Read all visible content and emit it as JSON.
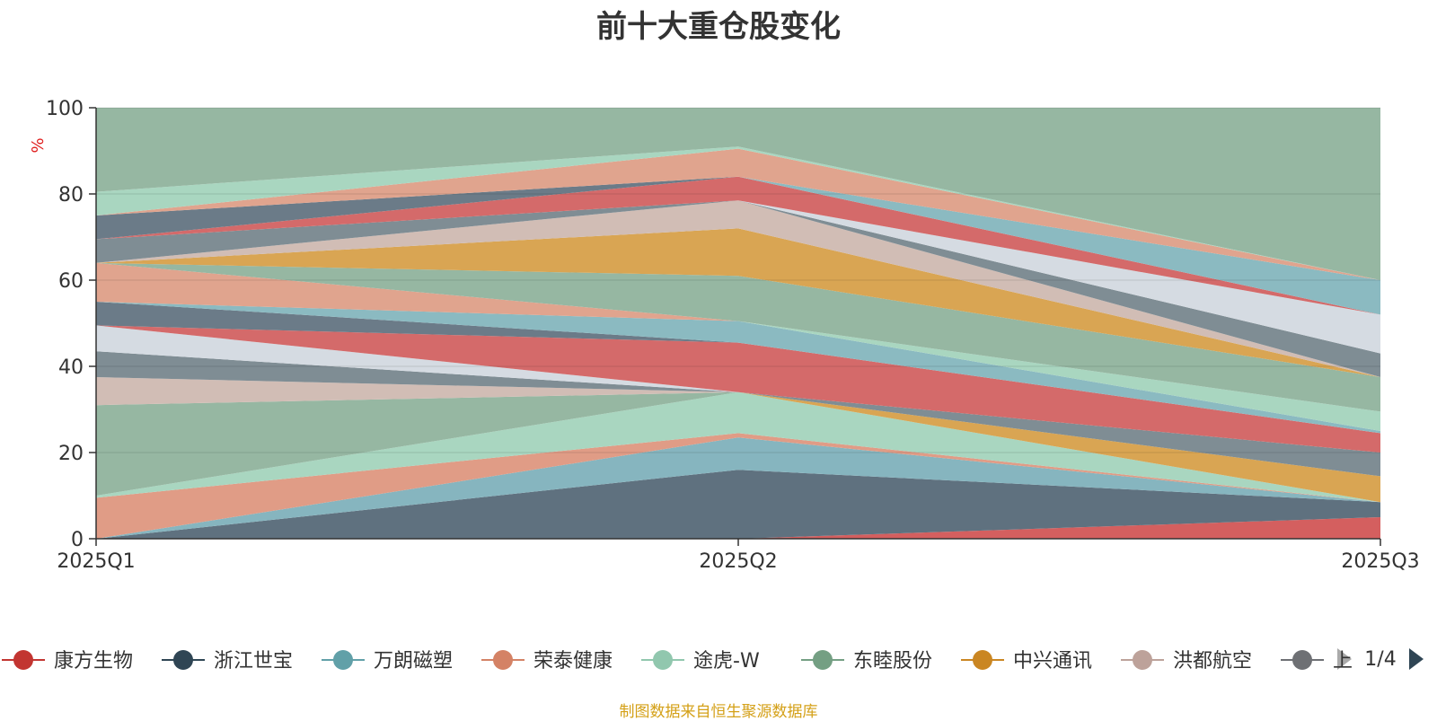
{
  "title": "前十大重仓股变化",
  "source_note": "制图数据来自恒生聚源数据库",
  "chart_data": {
    "type": "area",
    "title": "前十大重仓股变化",
    "ylabel": "%",
    "ylim": [
      0,
      100
    ],
    "yticks": [
      0,
      20,
      40,
      60,
      80,
      100
    ],
    "categories": [
      "2025Q1",
      "2025Q2",
      "2025Q3"
    ],
    "bands": [
      {
        "color": "#d45f5f",
        "values": [
          [
            0,
            0
          ],
          [
            0,
            0
          ],
          [
            0,
            5
          ]
        ]
      },
      {
        "color": "#5f717f",
        "values": [
          [
            0,
            0
          ],
          [
            0,
            16
          ],
          [
            5,
            8.5
          ]
        ]
      },
      {
        "color": "#86b5bf",
        "values": [
          [
            0,
            0
          ],
          [
            16,
            23.5
          ],
          [
            8.5,
            8.5
          ]
        ]
      },
      {
        "color": "#e09c86",
        "values": [
          [
            0,
            9.5
          ],
          [
            23.5,
            24.5
          ],
          [
            8.5,
            8.5
          ]
        ]
      },
      {
        "color": "#a9d6c0",
        "values": [
          [
            9.5,
            10
          ],
          [
            24.5,
            34
          ],
          [
            8.5,
            8.5
          ]
        ]
      },
      {
        "color": "#96b7a2",
        "values": [
          [
            10,
            31
          ],
          [
            34,
            34
          ],
          [
            8.5,
            8.5
          ]
        ]
      },
      {
        "color": "#d9a553",
        "values": [
          [
            31,
            31
          ],
          [
            34,
            34
          ],
          [
            8.5,
            14.5
          ]
        ]
      },
      {
        "color": "#d1bdb5",
        "values": [
          [
            31,
            37.5
          ],
          [
            34,
            34
          ],
          [
            14.5,
            14.5
          ]
        ]
      },
      {
        "color": "#7f8d94",
        "values": [
          [
            37.5,
            43.5
          ],
          [
            34,
            34
          ],
          [
            14.5,
            20
          ]
        ]
      },
      {
        "color": "#d5dbe2",
        "values": [
          [
            43.5,
            49.5
          ],
          [
            34,
            34
          ],
          [
            20,
            20
          ]
        ]
      },
      {
        "color": "#d46a6a",
        "values": [
          [
            49.5,
            49.5
          ],
          [
            34,
            45.5
          ],
          [
            20,
            24.5
          ]
        ]
      },
      {
        "color": "#6b7b88",
        "values": [
          [
            49.5,
            55
          ],
          [
            45.5,
            45.5
          ],
          [
            24.5,
            24.5
          ]
        ]
      },
      {
        "color": "#8bbac1",
        "values": [
          [
            55,
            55
          ],
          [
            45.5,
            50.5
          ],
          [
            24.5,
            25
          ]
        ]
      },
      {
        "color": "#e0a48e",
        "values": [
          [
            55,
            64
          ],
          [
            50.5,
            50.5
          ],
          [
            25,
            25
          ]
        ]
      },
      {
        "color": "#a9d6c0",
        "values": [
          [
            64,
            64
          ],
          [
            50.5,
            50.5
          ],
          [
            25,
            29.5
          ]
        ]
      },
      {
        "color": "#96b7a2",
        "values": [
          [
            64,
            64
          ],
          [
            50.5,
            61
          ],
          [
            29.5,
            37.5
          ]
        ]
      },
      {
        "color": "#d9a553",
        "values": [
          [
            64,
            64
          ],
          [
            61,
            72
          ],
          [
            37.5,
            37.5
          ]
        ]
      },
      {
        "color": "#d1bdb5",
        "values": [
          [
            64,
            64
          ],
          [
            72,
            78.5
          ],
          [
            37.5,
            37.5
          ]
        ]
      },
      {
        "color": "#7f8d94",
        "values": [
          [
            64,
            69.5
          ],
          [
            78.5,
            78.5
          ],
          [
            37.5,
            43
          ]
        ]
      },
      {
        "color": "#d5dbe2",
        "values": [
          [
            69.5,
            69.5
          ],
          [
            78.5,
            78.5
          ],
          [
            43,
            52
          ]
        ]
      },
      {
        "color": "#d46a6a",
        "values": [
          [
            69.5,
            69.5
          ],
          [
            78.5,
            84
          ],
          [
            52,
            52
          ]
        ]
      },
      {
        "color": "#6b7b88",
        "values": [
          [
            69.5,
            75
          ],
          [
            84,
            84
          ],
          [
            52,
            52
          ]
        ]
      },
      {
        "color": "#8bbac1",
        "values": [
          [
            75,
            75
          ],
          [
            84,
            84
          ],
          [
            52,
            60
          ]
        ]
      },
      {
        "color": "#e0a48e",
        "values": [
          [
            75,
            75
          ],
          [
            84,
            90.5
          ],
          [
            60,
            60
          ]
        ]
      },
      {
        "color": "#a9d6c0",
        "values": [
          [
            75,
            80.5
          ],
          [
            90.5,
            91
          ],
          [
            60,
            60
          ]
        ]
      },
      {
        "color": "#96b7a2",
        "values": [
          [
            80.5,
            100
          ],
          [
            91,
            100
          ],
          [
            60,
            100
          ]
        ]
      }
    ]
  },
  "legend": {
    "items": [
      {
        "label": "康方生物",
        "color": "#c23531"
      },
      {
        "label": "浙江世宝",
        "color": "#2f4554"
      },
      {
        "label": "万朗磁塑",
        "color": "#61a0a8"
      },
      {
        "label": "荣泰健康",
        "color": "#d48265"
      },
      {
        "label": "途虎-W",
        "color": "#91c7ae"
      },
      {
        "label": "东睦股份",
        "color": "#749f83"
      },
      {
        "label": "中兴通讯",
        "color": "#ca8622"
      },
      {
        "label": "洪都航空",
        "color": "#bda29a"
      },
      {
        "label": "上",
        "color": "#6e7074"
      }
    ],
    "page_indicator": "1/4"
  }
}
